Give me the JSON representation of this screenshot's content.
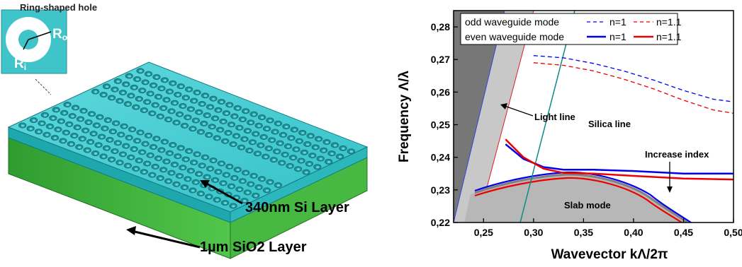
{
  "device": {
    "inset_label": "Ring-shaped hole",
    "inner_radius_label": "R",
    "inner_radius_sub": "i",
    "outer_radius_label": "R",
    "outer_radius_sub": "o",
    "si_layer_label": "340nm Si Layer",
    "sio2_layer_label": "1µm SiO2 Layer",
    "colors": {
      "si": "#3cc6cc",
      "sio2": "#3bb43a",
      "hole": "#2a9aa0"
    }
  },
  "chart_data": {
    "type": "line",
    "xlabel": "Wavevector kΛ/2π",
    "ylabel": "Frequency Λ/λ",
    "xlim": [
      0.22,
      0.5
    ],
    "ylim": [
      0.22,
      0.285
    ],
    "xticks": [
      "0,25",
      "0,30",
      "0,35",
      "0,40",
      "0,45",
      "0,50"
    ],
    "xtick_values": [
      0.25,
      0.3,
      0.35,
      0.4,
      0.45,
      0.5
    ],
    "yticks": [
      "0,22",
      "0,23",
      "0,24",
      "0,25",
      "0,26",
      "0,27",
      "0,28"
    ],
    "ytick_values": [
      0.22,
      0.23,
      0.24,
      0.25,
      0.26,
      0.27,
      0.28
    ],
    "legend": {
      "row1_label": "odd waveguide mode",
      "row2_label": "even waveguide mode",
      "n1": "n=1",
      "n11": "n=1.1"
    },
    "series": [
      {
        "name": "odd n=1",
        "color": "#0000ee",
        "dash": true,
        "x": [
          0.3,
          0.33,
          0.36,
          0.39,
          0.42,
          0.45,
          0.48,
          0.5
        ],
        "y": [
          0.2712,
          0.2705,
          0.2688,
          0.2665,
          0.2637,
          0.2605,
          0.2578,
          0.257
        ]
      },
      {
        "name": "odd n=1.1",
        "color": "#ee0000",
        "dash": true,
        "x": [
          0.3,
          0.33,
          0.36,
          0.39,
          0.42,
          0.45,
          0.48,
          0.5
        ],
        "y": [
          0.269,
          0.2682,
          0.2665,
          0.264,
          0.261,
          0.2575,
          0.2545,
          0.2535
        ]
      },
      {
        "name": "even n=1",
        "color": "#0000ee",
        "dash": false,
        "x": [
          0.272,
          0.29,
          0.31,
          0.33,
          0.36,
          0.4,
          0.45,
          0.5
        ],
        "y": [
          0.244,
          0.2395,
          0.237,
          0.2362,
          0.2362,
          0.2358,
          0.235,
          0.235
        ]
      },
      {
        "name": "even n=1.1",
        "color": "#ee0000",
        "dash": false,
        "x": [
          0.272,
          0.29,
          0.31,
          0.33,
          0.36,
          0.4,
          0.45,
          0.5
        ],
        "y": [
          0.2455,
          0.24,
          0.2365,
          0.2352,
          0.235,
          0.2343,
          0.2335,
          0.2332
        ]
      }
    ],
    "annotations": {
      "light_line": "Light line",
      "silica_line": "Silica line",
      "increase_index": "Increase index",
      "slab_mode": "Slab mode"
    }
  }
}
